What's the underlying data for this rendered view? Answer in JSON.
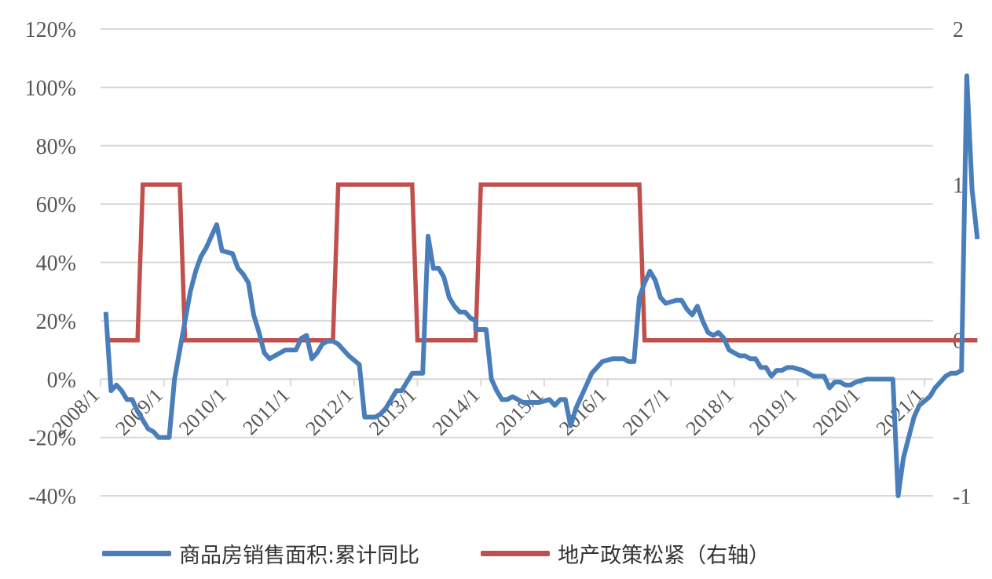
{
  "chart_data": {
    "type": "line",
    "title": "",
    "left_axis": {
      "ticks": [
        "120%",
        "100%",
        "80%",
        "60%",
        "40%",
        "20%",
        "0%",
        "-20%",
        "-40%"
      ],
      "min": -40,
      "max": 120
    },
    "right_axis": {
      "ticks": [
        "2",
        "1",
        "0",
        "-1"
      ],
      "min": -1,
      "max": 2
    },
    "x_tick_labels": [
      "2008/1",
      "2009/1",
      "2010/1",
      "2011/1",
      "2012/1",
      "2013/1",
      "2014/1",
      "2015/1",
      "2016/1",
      "2017/1",
      "2018/1",
      "2019/1",
      "2020/1",
      "2021/1"
    ],
    "grid": true,
    "legend_position": "bottom",
    "series": [
      {
        "name": "商品房销售面积:累计同比",
        "axis": "left",
        "color": "#4A7EBB",
        "points": [
          [
            "2008-02",
            23
          ],
          [
            "2008-03",
            -4
          ],
          [
            "2008-04",
            -2
          ],
          [
            "2008-05",
            -4
          ],
          [
            "2008-06",
            -7
          ],
          [
            "2008-07",
            -7
          ],
          [
            "2008-08",
            -11
          ],
          [
            "2008-09",
            -14
          ],
          [
            "2008-10",
            -17
          ],
          [
            "2008-11",
            -18
          ],
          [
            "2008-12",
            -20
          ],
          [
            "2009-02",
            -20
          ],
          [
            "2009-03",
            0
          ],
          [
            "2009-04",
            10
          ],
          [
            "2009-05",
            20
          ],
          [
            "2009-06",
            30
          ],
          [
            "2009-07",
            37
          ],
          [
            "2009-08",
            42
          ],
          [
            "2009-09",
            45
          ],
          [
            "2009-10",
            49
          ],
          [
            "2009-11",
            53
          ],
          [
            "2009-12",
            44
          ],
          [
            "2010-02",
            43
          ],
          [
            "2010-03",
            38
          ],
          [
            "2010-04",
            36
          ],
          [
            "2010-05",
            33
          ],
          [
            "2010-06",
            22
          ],
          [
            "2010-07",
            16
          ],
          [
            "2010-08",
            9
          ],
          [
            "2010-09",
            7
          ],
          [
            "2010-10",
            8
          ],
          [
            "2010-11",
            9
          ],
          [
            "2010-12",
            10
          ],
          [
            "2011-02",
            10
          ],
          [
            "2011-03",
            14
          ],
          [
            "2011-04",
            15
          ],
          [
            "2011-05",
            7
          ],
          [
            "2011-06",
            9
          ],
          [
            "2011-07",
            12
          ],
          [
            "2011-08",
            13
          ],
          [
            "2011-09",
            13
          ],
          [
            "2011-10",
            12
          ],
          [
            "2011-11",
            10
          ],
          [
            "2011-12",
            8
          ],
          [
            "2012-02",
            5
          ],
          [
            "2012-03",
            -13
          ],
          [
            "2012-04",
            -13
          ],
          [
            "2012-05",
            -13
          ],
          [
            "2012-06",
            -12
          ],
          [
            "2012-07",
            -10
          ],
          [
            "2012-08",
            -7
          ],
          [
            "2012-09",
            -4
          ],
          [
            "2012-10",
            -4
          ],
          [
            "2012-11",
            -1
          ],
          [
            "2012-12",
            2
          ],
          [
            "2013-02",
            2
          ],
          [
            "2013-03",
            49
          ],
          [
            "2013-04",
            38
          ],
          [
            "2013-05",
            38
          ],
          [
            "2013-06",
            35
          ],
          [
            "2013-07",
            28
          ],
          [
            "2013-08",
            25
          ],
          [
            "2013-09",
            23
          ],
          [
            "2013-10",
            23
          ],
          [
            "2013-11",
            21
          ],
          [
            "2013-12",
            20
          ],
          [
            "2013-12",
            17
          ],
          [
            "2014-02",
            17
          ],
          [
            "2014-03",
            0
          ],
          [
            "2014-04",
            -4
          ],
          [
            "2014-05",
            -7
          ],
          [
            "2014-06",
            -7
          ],
          [
            "2014-07",
            -6
          ],
          [
            "2014-08",
            -7
          ],
          [
            "2014-09",
            -8
          ],
          [
            "2014-10",
            -8
          ],
          [
            "2014-11",
            -8
          ],
          [
            "2014-12",
            -8
          ],
          [
            "2015-02",
            -7
          ],
          [
            "2015-03",
            -9
          ],
          [
            "2015-04",
            -7
          ],
          [
            "2015-05",
            -7
          ],
          [
            "2015-06",
            -16
          ],
          [
            "2015-07",
            -10
          ],
          [
            "2015-08",
            -6
          ],
          [
            "2015-09",
            -2
          ],
          [
            "2015-10",
            2
          ],
          [
            "2015-11",
            4
          ],
          [
            "2015-12",
            6
          ],
          [
            "2016-02",
            7
          ],
          [
            "2016-03",
            7
          ],
          [
            "2016-04",
            7
          ],
          [
            "2016-05",
            6
          ],
          [
            "2016-06",
            6
          ],
          [
            "2016-07",
            28
          ],
          [
            "2016-08",
            33
          ],
          [
            "2016-09",
            37
          ],
          [
            "2016-10",
            34
          ],
          [
            "2016-11",
            28
          ],
          [
            "2016-12",
            26
          ],
          [
            "2017-02",
            27
          ],
          [
            "2017-03",
            27
          ],
          [
            "2017-04",
            24
          ],
          [
            "2017-05",
            22
          ],
          [
            "2017-06",
            25
          ],
          [
            "2017-07",
            20
          ],
          [
            "2017-08",
            16
          ],
          [
            "2017-09",
            15
          ],
          [
            "2017-10",
            16
          ],
          [
            "2017-11",
            14
          ],
          [
            "2017-12",
            10
          ],
          [
            "2018-02",
            8
          ],
          [
            "2018-03",
            8
          ],
          [
            "2018-04",
            7
          ],
          [
            "2018-05",
            7
          ],
          [
            "2018-06",
            4
          ],
          [
            "2018-07",
            4
          ],
          [
            "2018-08",
            1
          ],
          [
            "2018-09",
            3
          ],
          [
            "2018-10",
            3
          ],
          [
            "2018-11",
            4
          ],
          [
            "2018-12",
            4
          ],
          [
            "2019-02",
            3
          ],
          [
            "2019-03",
            2
          ],
          [
            "2019-04",
            1
          ],
          [
            "2019-05",
            1
          ],
          [
            "2019-06",
            1
          ],
          [
            "2019-07",
            -3
          ],
          [
            "2019-08",
            -1
          ],
          [
            "2019-09",
            -1
          ],
          [
            "2019-10",
            -2
          ],
          [
            "2019-11",
            -2
          ],
          [
            "2019-12",
            -1
          ],
          [
            "2020-02",
            0
          ],
          [
            "2020-03",
            0
          ],
          [
            "2020-04",
            0
          ],
          [
            "2020-05",
            0
          ],
          [
            "2020-06",
            0
          ],
          [
            "2020-07",
            0
          ],
          [
            "2020-08",
            -40
          ],
          [
            "2020-09",
            -27
          ],
          [
            "2020-10",
            -20
          ],
          [
            "2020-11",
            -13
          ],
          [
            "2020-12",
            -9
          ],
          [
            "2021-02",
            -6
          ],
          [
            "2021-03",
            -3
          ],
          [
            "2021-04",
            -1
          ],
          [
            "2021-05",
            1
          ],
          [
            "2021-06",
            2
          ],
          [
            "2021-07",
            2
          ],
          [
            "2021-08",
            3
          ],
          [
            "2021-09",
            104
          ],
          [
            "2021-10",
            65
          ],
          [
            "2021-11",
            48
          ]
        ]
      },
      {
        "name": "地产政策松紧（右轴）",
        "axis": "right",
        "color": "#C0504D",
        "points": [
          [
            "2008-02",
            0
          ],
          [
            "2008-08",
            0
          ],
          [
            "2008-09",
            1
          ],
          [
            "2009-04",
            1
          ],
          [
            "2009-05",
            0
          ],
          [
            "2011-09",
            0
          ],
          [
            "2011-10",
            1
          ],
          [
            "2012-12",
            1
          ],
          [
            "2013-01",
            0
          ],
          [
            "2013-12",
            0
          ],
          [
            "2014-01",
            1
          ],
          [
            "2016-07",
            1
          ],
          [
            "2016-08",
            0
          ],
          [
            "2021-11",
            0
          ]
        ]
      }
    ]
  }
}
